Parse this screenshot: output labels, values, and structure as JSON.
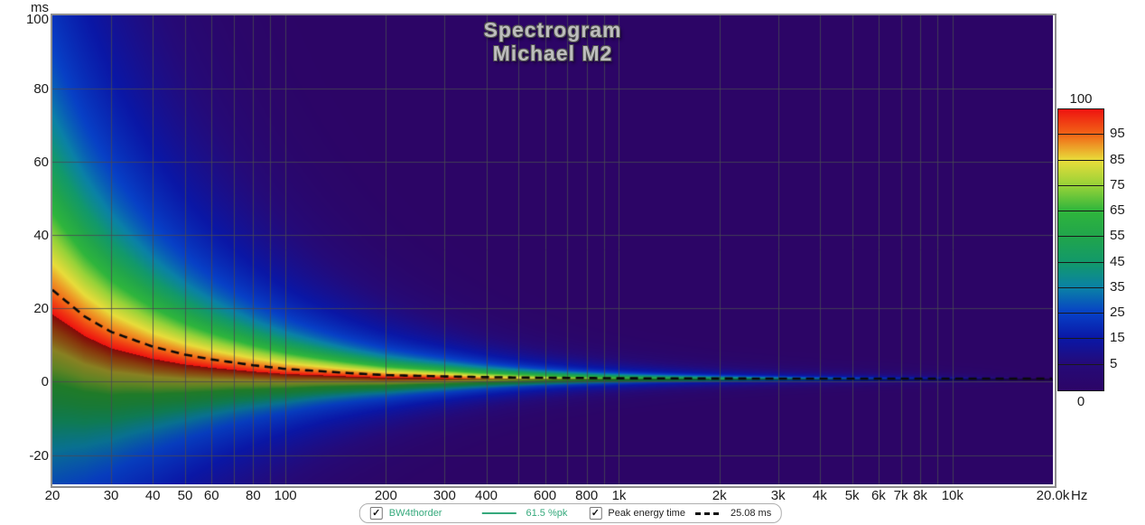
{
  "chart_data": {
    "type": "heatmap",
    "title": "Spectrogram",
    "subtitle": "Michael M2",
    "x_axis": {
      "unit": "Hz",
      "scale": "log",
      "min": 20,
      "max": 20000,
      "ticks": [
        {
          "f": 20,
          "label": "20"
        },
        {
          "f": 30,
          "label": "30"
        },
        {
          "f": 40,
          "label": "40"
        },
        {
          "f": 50,
          "label": "50"
        },
        {
          "f": 60,
          "label": "60"
        },
        {
          "f": 80,
          "label": "80"
        },
        {
          "f": 100,
          "label": "100"
        },
        {
          "f": 200,
          "label": "200"
        },
        {
          "f": 300,
          "label": "300"
        },
        {
          "f": 400,
          "label": "400"
        },
        {
          "f": 600,
          "label": "600"
        },
        {
          "f": 800,
          "label": "800"
        },
        {
          "f": 1000,
          "label": "1k"
        },
        {
          "f": 2000,
          "label": "2k"
        },
        {
          "f": 3000,
          "label": "3k"
        },
        {
          "f": 4000,
          "label": "4k"
        },
        {
          "f": 5000,
          "label": "5k"
        },
        {
          "f": 6000,
          "label": "6k"
        },
        {
          "f": 7000,
          "label": "7k"
        },
        {
          "f": 8000,
          "label": "8k"
        },
        {
          "f": 10000,
          "label": "10k"
        },
        {
          "f": 20000,
          "label": "20.0k"
        }
      ],
      "gridlines": [
        30,
        40,
        50,
        60,
        70,
        80,
        90,
        100,
        200,
        300,
        400,
        500,
        600,
        700,
        800,
        900,
        1000,
        2000,
        3000,
        4000,
        5000,
        6000,
        7000,
        8000,
        9000,
        10000
      ]
    },
    "y_axis": {
      "label": "ms",
      "min": -28,
      "max": 100,
      "ticks": [
        100,
        80,
        60,
        40,
        20,
        0,
        -20
      ]
    },
    "colorbar": {
      "top_label": "100",
      "bottom_label": "0",
      "band_boundaries": [
        100,
        95,
        85,
        75,
        65,
        55,
        45,
        35,
        25,
        15,
        5,
        0
      ],
      "stops": [
        {
          "v": 0,
          "c": "#2c0566"
        },
        {
          "v": 5,
          "c": "#250a78"
        },
        {
          "v": 15,
          "c": "#0a17a6"
        },
        {
          "v": 25,
          "c": "#0740c6"
        },
        {
          "v": 35,
          "c": "#0a81a6"
        },
        {
          "v": 45,
          "c": "#12996a"
        },
        {
          "v": 55,
          "c": "#21a54b"
        },
        {
          "v": 65,
          "c": "#2fb53c"
        },
        {
          "v": 75,
          "c": "#96d238"
        },
        {
          "v": 85,
          "c": "#e8dc3a"
        },
        {
          "v": 95,
          "c": "#f26416"
        },
        {
          "v": 100,
          "c": "#ee1310"
        }
      ]
    },
    "peak_energy_curve": {
      "name": "Peak energy time",
      "style": "dashed",
      "color": "#0a0a0a",
      "points_hz_ms": [
        [
          20,
          25.08
        ],
        [
          25,
          17.8
        ],
        [
          30,
          13.6
        ],
        [
          40,
          9.6
        ],
        [
          50,
          7.4
        ],
        [
          60,
          6.1
        ],
        [
          80,
          4.5
        ],
        [
          100,
          3.5
        ],
        [
          150,
          2.45
        ],
        [
          200,
          1.8
        ],
        [
          300,
          1.45
        ],
        [
          400,
          1.25
        ],
        [
          600,
          1.1
        ],
        [
          1000,
          0.95
        ],
        [
          2000,
          0.88
        ],
        [
          5000,
          0.85
        ],
        [
          10000,
          0.85
        ],
        [
          20000,
          0.85
        ]
      ]
    },
    "heat_model": {
      "amp_plateau_hz": 300,
      "amp_slope_per_decade": 56,
      "lambda_above_ms": "1600/f + 1.0",
      "lambda_below_ms": "1100/f + 0.7",
      "center_offset_ratio": 0.12,
      "core_weight": 0.4,
      "core_width_ratio": 0.45,
      "shadow_depth": 0.45,
      "shadow_width_ratio": 0.6,
      "grid_color": "rgba(72,72,82,0.8)"
    }
  },
  "legend_bar": {
    "check_glyph": "✓",
    "items": [
      {
        "label": "BW4thorder",
        "swatch": "line",
        "value": "61.5 %pk",
        "color": "#35a97c",
        "checked": true
      },
      {
        "label": "Peak energy time",
        "swatch": "dash",
        "value": "25.08 ms",
        "color": "#111111",
        "checked": true
      }
    ]
  }
}
